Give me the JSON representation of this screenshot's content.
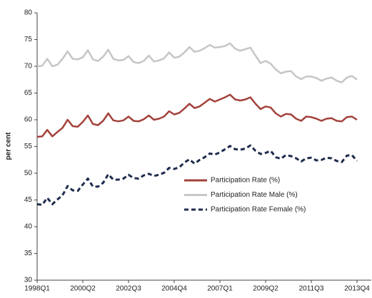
{
  "chart_data": {
    "type": "line",
    "y_label": "per cent",
    "categories": [
      "1998Q1",
      null,
      null,
      null,
      null,
      null,
      null,
      null,
      null,
      "2000Q2",
      null,
      null,
      null,
      null,
      null,
      null,
      null,
      null,
      "2002Q3",
      null,
      null,
      null,
      null,
      null,
      null,
      null,
      null,
      "2004Q4",
      null,
      null,
      null,
      null,
      null,
      null,
      null,
      null,
      "2007Q1",
      null,
      null,
      null,
      null,
      null,
      null,
      null,
      null,
      "2009Q2",
      null,
      null,
      null,
      null,
      null,
      null,
      null,
      null,
      "2011Q3",
      null,
      null,
      null,
      null,
      null,
      null,
      null,
      null,
      "2013Q4"
    ],
    "series": [
      {
        "name": "Participation Rate (%)",
        "color": "#a3413b",
        "dash": false,
        "values": [
          56.8,
          56.9,
          58.1,
          56.9,
          57.7,
          58.5,
          60.0,
          58.8,
          58.7,
          59.6,
          60.8,
          59.2,
          59.0,
          59.8,
          61.2,
          59.9,
          59.7,
          59.9,
          60.6,
          59.8,
          59.7,
          60.1,
          60.8,
          60.0,
          60.2,
          60.6,
          61.6,
          61.0,
          61.3,
          62.1,
          63.0,
          62.2,
          62.5,
          63.2,
          63.9,
          63.4,
          63.8,
          64.2,
          64.7,
          63.8,
          63.6,
          63.8,
          64.2,
          63.0,
          62.0,
          62.5,
          62.3,
          61.2,
          60.6,
          61.1,
          61.0,
          60.2,
          59.8,
          60.6,
          60.5,
          60.2,
          59.8,
          60.2,
          60.3,
          59.8,
          59.7,
          60.5,
          60.6,
          60.0
        ]
      },
      {
        "name": "Participation Rate Male (%)",
        "color": "#c6c6c6",
        "dash": false,
        "values": [
          70.0,
          70.1,
          71.4,
          70.0,
          70.3,
          71.4,
          72.8,
          71.4,
          71.3,
          71.7,
          73.0,
          71.3,
          71.0,
          71.8,
          73.1,
          71.4,
          71.1,
          71.2,
          71.9,
          70.8,
          70.6,
          71.0,
          72.0,
          70.9,
          71.1,
          71.5,
          72.6,
          71.6,
          71.8,
          72.6,
          73.6,
          72.7,
          72.9,
          73.4,
          74.0,
          73.5,
          73.6,
          73.8,
          74.3,
          73.3,
          72.9,
          73.2,
          73.5,
          72.0,
          70.6,
          71.0,
          70.5,
          69.4,
          68.7,
          69.0,
          69.1,
          68.1,
          67.6,
          68.1,
          68.1,
          67.8,
          67.3,
          67.7,
          67.9,
          67.3,
          67.0,
          67.9,
          68.2,
          67.5
        ]
      },
      {
        "name": "Participation Rate Female (%)",
        "color": "#1f2c4d",
        "dash": true,
        "values": [
          44.2,
          44.1,
          45.4,
          44.2,
          45.1,
          45.9,
          47.6,
          46.8,
          46.7,
          47.9,
          49.0,
          47.5,
          47.5,
          48.2,
          49.8,
          48.8,
          48.8,
          49.0,
          49.7,
          49.1,
          49.0,
          49.6,
          49.9,
          49.5,
          49.7,
          50.1,
          51.0,
          50.8,
          51.1,
          52.0,
          52.6,
          51.8,
          52.5,
          53.0,
          53.7,
          53.5,
          53.9,
          54.5,
          55.1,
          54.5,
          54.4,
          54.6,
          55.2,
          54.2,
          53.6,
          53.8,
          54.2,
          53.0,
          52.7,
          53.4,
          53.2,
          52.8,
          52.2,
          52.8,
          52.9,
          52.4,
          52.5,
          52.9,
          52.8,
          52.3,
          52.1,
          53.3,
          53.4,
          52.3
        ]
      }
    ],
    "ylim": [
      30,
      80
    ],
    "yticks": [
      30,
      35,
      40,
      45,
      50,
      55,
      60,
      65,
      70,
      75,
      80
    ],
    "grid": false,
    "legend": "center"
  }
}
